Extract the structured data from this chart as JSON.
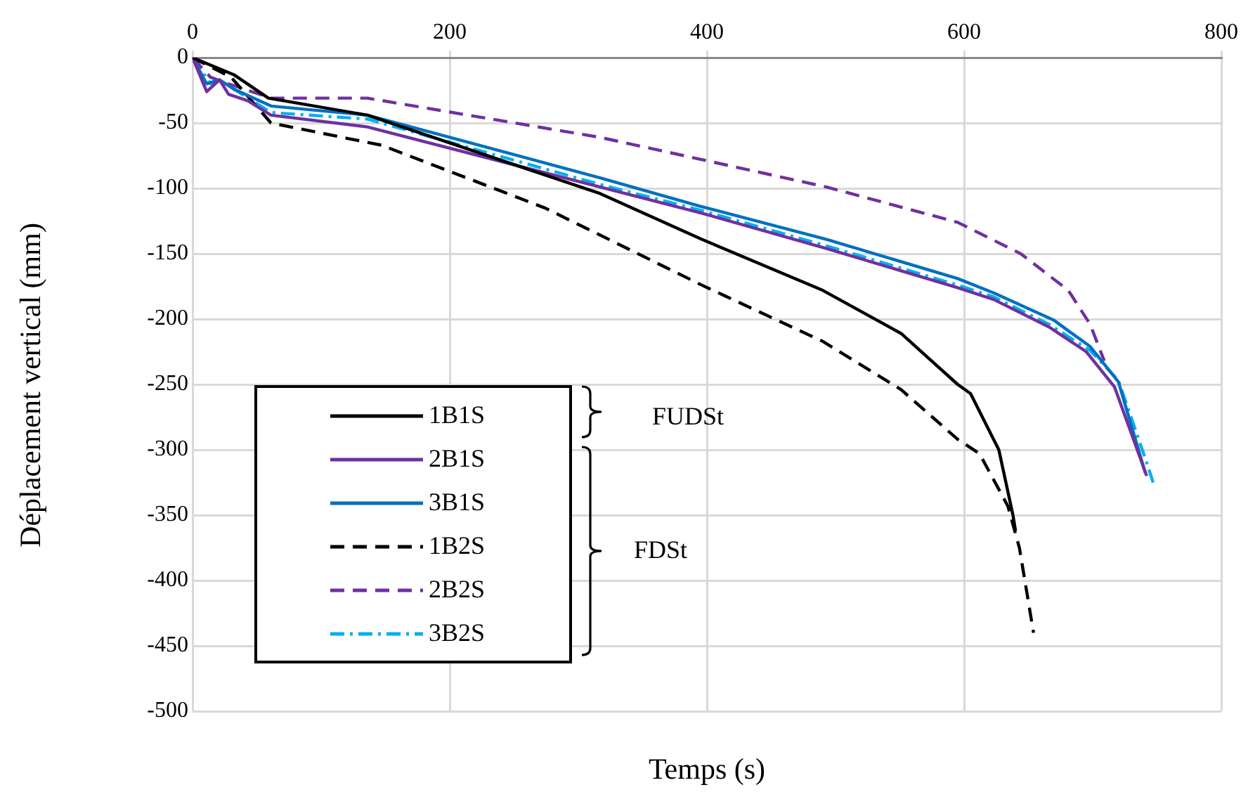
{
  "chart_data": {
    "type": "line",
    "xlabel": "Temps (s)",
    "ylabel": "Déplacement vertical (mm)",
    "xlim": [
      0,
      800
    ],
    "xticks": [
      0,
      200,
      400,
      600,
      800
    ],
    "ylim": [
      -500,
      0
    ],
    "yticks": [
      0,
      -50,
      -100,
      -150,
      -200,
      -250,
      -300,
      -350,
      -400,
      -450,
      -500
    ],
    "grid": true,
    "legend": "bottom left",
    "marker": "none",
    "annotations": [
      "FUDSt",
      "FDSt"
    ],
    "series": [
      {
        "name": "1B1S",
        "color": "#000000",
        "line_style": "solid",
        "x": [
          0,
          32,
          59,
          136,
          317,
          396,
          490,
          551,
          595,
          605,
          627,
          638,
          640
        ],
        "values": [
          0,
          -13,
          -31,
          -44,
          -104,
          -139,
          -178,
          -211,
          -250,
          -257,
          -300,
          -350,
          -362
        ]
      },
      {
        "name": "2B1S",
        "color": "#7030a0",
        "line_style": "solid",
        "x": [
          0,
          11,
          21,
          28,
          43,
          61,
          136,
          317,
          396,
          493,
          595,
          623,
          666,
          695,
          717,
          742
        ],
        "values": [
          0,
          -26,
          -17,
          -28,
          -33,
          -44,
          -53,
          -99,
          -119,
          -146,
          -176,
          -185,
          -206,
          -225,
          -252,
          -320
        ]
      },
      {
        "name": "3B1S",
        "color": "#0070c0",
        "line_style": "solid",
        "x": [
          0,
          11,
          21,
          32,
          61,
          136,
          317,
          396,
          493,
          595,
          623,
          670,
          698,
          720,
          741
        ],
        "values": [
          0,
          -20,
          -17,
          -24,
          -37,
          -44,
          -92,
          -114,
          -139,
          -169,
          -180,
          -201,
          -221,
          -248,
          -318
        ]
      },
      {
        "name": "1B2S",
        "color": "#000000",
        "line_style": "dashed",
        "x": [
          0,
          30,
          61,
          147,
          274,
          396,
          490,
          551,
          595,
          612,
          634,
          643,
          654
        ],
        "values": [
          0,
          -15,
          -50,
          -67,
          -115,
          -174,
          -217,
          -254,
          -292,
          -303,
          -343,
          -375,
          -440
        ]
      },
      {
        "name": "2B2S",
        "color": "#7030a0",
        "line_style": "dashed",
        "x": [
          0,
          14,
          28,
          61,
          136,
          317,
          396,
          493,
          595,
          644,
          681,
          698,
          709
        ],
        "values": [
          0,
          -15,
          -20,
          -31,
          -31,
          -61,
          -78,
          -99,
          -126,
          -150,
          -178,
          -204,
          -232
        ]
      },
      {
        "name": "3B2S",
        "color": "#00b0f0",
        "line_style": "dashdot",
        "x": [
          0,
          14,
          21,
          61,
          136,
          317,
          396,
          493,
          595,
          623,
          666,
          698,
          720,
          741,
          747
        ],
        "values": [
          0,
          -20,
          -17,
          -42,
          -47,
          -97,
          -117,
          -144,
          -174,
          -183,
          -204,
          -224,
          -247,
          -307,
          -325
        ]
      }
    ]
  }
}
